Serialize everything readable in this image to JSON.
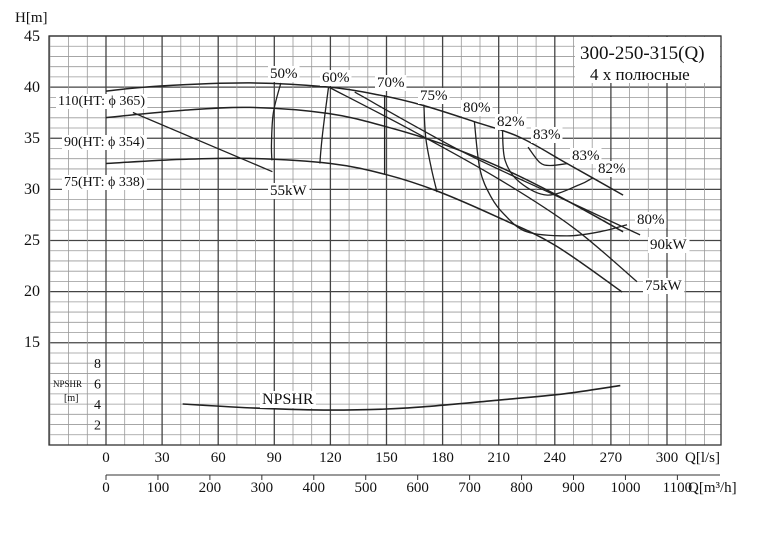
{
  "chart_data": {
    "type": "line",
    "title": "300-250-315(Q)",
    "subtitle": "4 x полюсные",
    "ylabel": "H[m]",
    "xlabel": "Q[l/s]",
    "xlabel2": "Q[m³/h]",
    "ylabel2": "NPSHR",
    "ylabel2_unit": "[m]",
    "ylim": [
      15,
      45
    ],
    "xlim": [
      0,
      300
    ],
    "grid": true,
    "y_ticks": [
      "45",
      "40",
      "35",
      "30",
      "25",
      "20",
      "15"
    ],
    "y_tick_values": [
      45,
      40,
      35,
      30,
      25,
      20,
      15
    ],
    "npshr_ticks": [
      "8",
      "6",
      "4",
      "2"
    ],
    "npshr_tick_values": [
      8,
      6,
      4,
      2
    ],
    "x_ticks": [
      "0",
      "30",
      "60",
      "90",
      "120",
      "150",
      "180",
      "210",
      "240",
      "270",
      "300"
    ],
    "x_tick_values": [
      0,
      30,
      60,
      90,
      120,
      150,
      180,
      210,
      240,
      270,
      300
    ],
    "x2_ticks": [
      "0",
      "100",
      "200",
      "300",
      "400",
      "500",
      "600",
      "700",
      "800",
      "900",
      "1000",
      "1100"
    ],
    "x2_tick_values": [
      0,
      100,
      200,
      300,
      400,
      500,
      600,
      700,
      800,
      900,
      1000,
      1100
    ],
    "head_curves": [
      {
        "name": "110(HT: ϕ 365)",
        "points": [
          [
            0,
            39.6
          ],
          [
            29,
            40.1
          ],
          [
            77,
            40.4
          ],
          [
            119,
            40.0
          ],
          [
            146.5,
            39.2
          ],
          [
            169.5,
            38.2
          ],
          [
            197,
            36.6
          ],
          [
            221,
            35.1
          ],
          [
            246.5,
            32.5
          ],
          [
            276.5,
            29.4
          ]
        ]
      },
      {
        "name": "90(HT: ϕ 354)",
        "points": [
          [
            0,
            37.0
          ],
          [
            40,
            37.7
          ],
          [
            77,
            38.0
          ],
          [
            119,
            37.4
          ],
          [
            150,
            36.1
          ],
          [
            180,
            34.4
          ],
          [
            210,
            32.2
          ],
          [
            240,
            29.5
          ],
          [
            276.5,
            25.8
          ]
        ]
      },
      {
        "name": "75(HT: ϕ 338)",
        "points": [
          [
            0,
            32.5
          ],
          [
            40,
            32.9
          ],
          [
            77,
            33.0
          ],
          [
            120,
            32.5
          ],
          [
            150,
            31.4
          ],
          [
            177,
            29.8
          ],
          [
            210,
            27.2
          ],
          [
            240,
            24.5
          ],
          [
            276,
            19.9
          ]
        ]
      }
    ],
    "power_curves": [
      {
        "name": "55kW",
        "points": [
          [
            14.4,
            37.5
          ],
          [
            89,
            31.7
          ]
        ]
      },
      {
        "name": "75kW",
        "points": [
          [
            119,
            40.0
          ],
          [
            165,
            35.6
          ],
          [
            210.7,
            30.9
          ],
          [
            250,
            26.2
          ],
          [
            284,
            20.9
          ]
        ]
      },
      {
        "name": "90kW",
        "points": [
          [
            133,
            39.5
          ],
          [
            189,
            33.8
          ],
          [
            240,
            29.4
          ],
          [
            285.6,
            25.5
          ]
        ]
      }
    ],
    "efficiency_curves": [
      {
        "name": "50%",
        "points": [
          [
            93.5,
            40.4
          ],
          [
            89.5,
            37.5
          ],
          [
            88.5,
            34.5
          ],
          [
            88.7,
            32.8
          ]
        ]
      },
      {
        "name": "60%",
        "points": [
          [
            119,
            40.0
          ],
          [
            116.5,
            36.5
          ],
          [
            115,
            34
          ],
          [
            114.4,
            32.5
          ]
        ]
      },
      {
        "name": "70%",
        "points": [
          [
            149,
            39.2
          ],
          [
            149,
            35.5
          ],
          [
            149,
            31.4
          ]
        ]
      },
      {
        "name": "75%",
        "points": [
          [
            170,
            38.2
          ],
          [
            171,
            35
          ],
          [
            174,
            32
          ],
          [
            177,
            29.7
          ]
        ]
      },
      {
        "name": "80%",
        "points": [
          [
            197,
            36.6
          ],
          [
            200,
            31.9
          ],
          [
            206,
            29.2
          ],
          [
            213,
            27.5
          ],
          [
            225,
            25.8
          ],
          [
            246.5,
            25.4
          ],
          [
            264,
            25.8
          ],
          [
            278.6,
            26.5
          ]
        ]
      },
      {
        "name": "82%",
        "points": [
          [
            212,
            35.8
          ],
          [
            213.4,
            32.8
          ],
          [
            221,
            30.7
          ],
          [
            236,
            29.4
          ],
          [
            253,
            30.4
          ],
          [
            260.4,
            31.1
          ]
        ]
      },
      {
        "name": "83%",
        "points": [
          [
            225.7,
            34.1
          ],
          [
            232,
            32.6
          ],
          [
            237.4,
            32.3
          ],
          [
            247,
            32.5
          ]
        ]
      }
    ],
    "npshr_curve": {
      "name": "NPSHR",
      "points": [
        [
          41,
          4.0
        ],
        [
          80,
          3.6
        ],
        [
          120,
          3.4
        ],
        [
          160,
          3.6
        ],
        [
          211,
          4.4
        ],
        [
          245,
          5.0
        ],
        [
          275,
          5.8
        ]
      ]
    },
    "annotations": [
      "110(HT: ϕ 365)",
      "90(HT: ϕ 354)",
      "75(HT: ϕ 338)",
      "55kW",
      "50%",
      "60%",
      "70%",
      "75%",
      "80%",
      "82%",
      "83%",
      "83%",
      "82%",
      "80%",
      "90kW",
      "75kW",
      "NPSHR"
    ]
  }
}
